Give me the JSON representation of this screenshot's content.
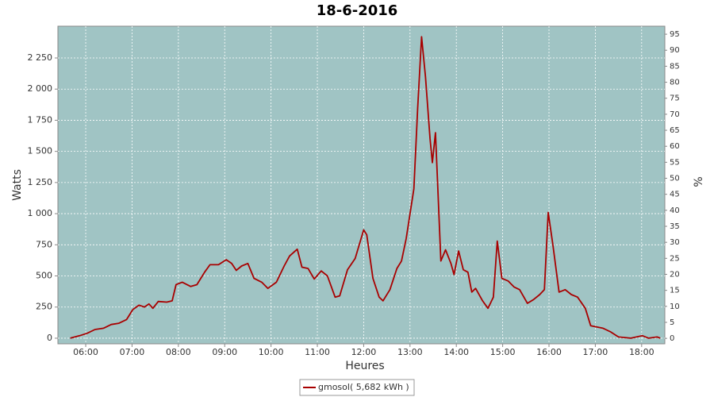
{
  "chart_data": {
    "type": "line",
    "title": "18-6-2016",
    "x_label": "Heures",
    "y_label": "Watts",
    "y2_label": "%",
    "x": [
      "05:40",
      "05:52",
      "06:02",
      "06:12",
      "06:23",
      "06:33",
      "06:43",
      "06:53",
      "07:01",
      "07:09",
      "07:16",
      "07:22",
      "07:27",
      "07:34",
      "07:45",
      "07:52",
      "07:57",
      "08:05",
      "08:16",
      "08:24",
      "08:34",
      "08:41",
      "08:52",
      "09:02",
      "09:09",
      "09:15",
      "09:22",
      "09:30",
      "09:38",
      "09:48",
      "09:56",
      "10:07",
      "10:17",
      "10:24",
      "10:34",
      "10:40",
      "10:48",
      "10:56",
      "11:05",
      "11:13",
      "11:23",
      "11:29",
      "11:39",
      "11:49",
      "12:00",
      "12:04",
      "12:12",
      "12:20",
      "12:25",
      "12:34",
      "12:43",
      "12:49",
      "12:55",
      "13:05",
      "13:10",
      "13:15",
      "13:20",
      "13:26",
      "13:29",
      "13:33",
      "13:36",
      "13:40",
      "13:46",
      "13:53",
      "13:57",
      "14:03",
      "14:09",
      "14:15",
      "14:20",
      "14:25",
      "14:34",
      "14:41",
      "14:48",
      "14:53",
      "14:59",
      "15:07",
      "15:15",
      "15:22",
      "15:32",
      "15:40",
      "15:48",
      "15:54",
      "15:59",
      "16:05",
      "16:13",
      "16:21",
      "16:29",
      "16:37",
      "16:47",
      "16:54",
      "17:10",
      "17:20",
      "17:30",
      "17:46",
      "18:01",
      "18:09",
      "18:20",
      "18:24"
    ],
    "series": [
      {
        "name": "gmosol( 5,682 kWh )",
        "color": "#a80000",
        "values": [
          0,
          20,
          40,
          70,
          80,
          110,
          120,
          150,
          230,
          265,
          250,
          275,
          240,
          295,
          290,
          300,
          430,
          450,
          415,
          430,
          530,
          590,
          590,
          630,
          600,
          545,
          580,
          600,
          480,
          450,
          400,
          450,
          580,
          660,
          715,
          570,
          560,
          475,
          540,
          500,
          330,
          340,
          550,
          640,
          870,
          830,
          480,
          330,
          300,
          390,
          560,
          620,
          800,
          1200,
          1850,
          2420,
          2100,
          1600,
          1410,
          1650,
          1200,
          620,
          710,
          600,
          510,
          700,
          550,
          530,
          370,
          400,
          300,
          240,
          330,
          780,
          480,
          460,
          410,
          390,
          280,
          310,
          350,
          390,
          1010,
          750,
          370,
          390,
          350,
          330,
          240,
          100,
          80,
          50,
          10,
          0,
          20,
          0,
          10,
          0
        ]
      }
    ],
    "xlim": [
      "05:24",
      "18:30"
    ],
    "xticks": [
      "06:00",
      "07:00",
      "08:00",
      "09:00",
      "10:00",
      "11:00",
      "12:00",
      "13:00",
      "14:00",
      "15:00",
      "16:00",
      "17:00",
      "18:00"
    ],
    "ylim": [
      -45,
      2505
    ],
    "yticks": [
      0,
      250,
      500,
      750,
      {
        "value": 1000,
        "label": "1 000"
      },
      {
        "value": 1250,
        "label": "1 250"
      },
      {
        "value": 1500,
        "label": "1 500"
      },
      {
        "value": 1750,
        "label": "1 750"
      },
      {
        "value": 2000,
        "label": "2 000"
      },
      {
        "value": 2250,
        "label": "2 250"
      }
    ],
    "y2lim": [
      -1.7,
      97.5
    ],
    "y2ticks": [
      0,
      5,
      10,
      15,
      20,
      25,
      30,
      35,
      40,
      45,
      50,
      55,
      60,
      65,
      70,
      75,
      80,
      85,
      90,
      95
    ],
    "grid": true,
    "plot_background": "#a0c4c4",
    "legend": "bottom"
  }
}
